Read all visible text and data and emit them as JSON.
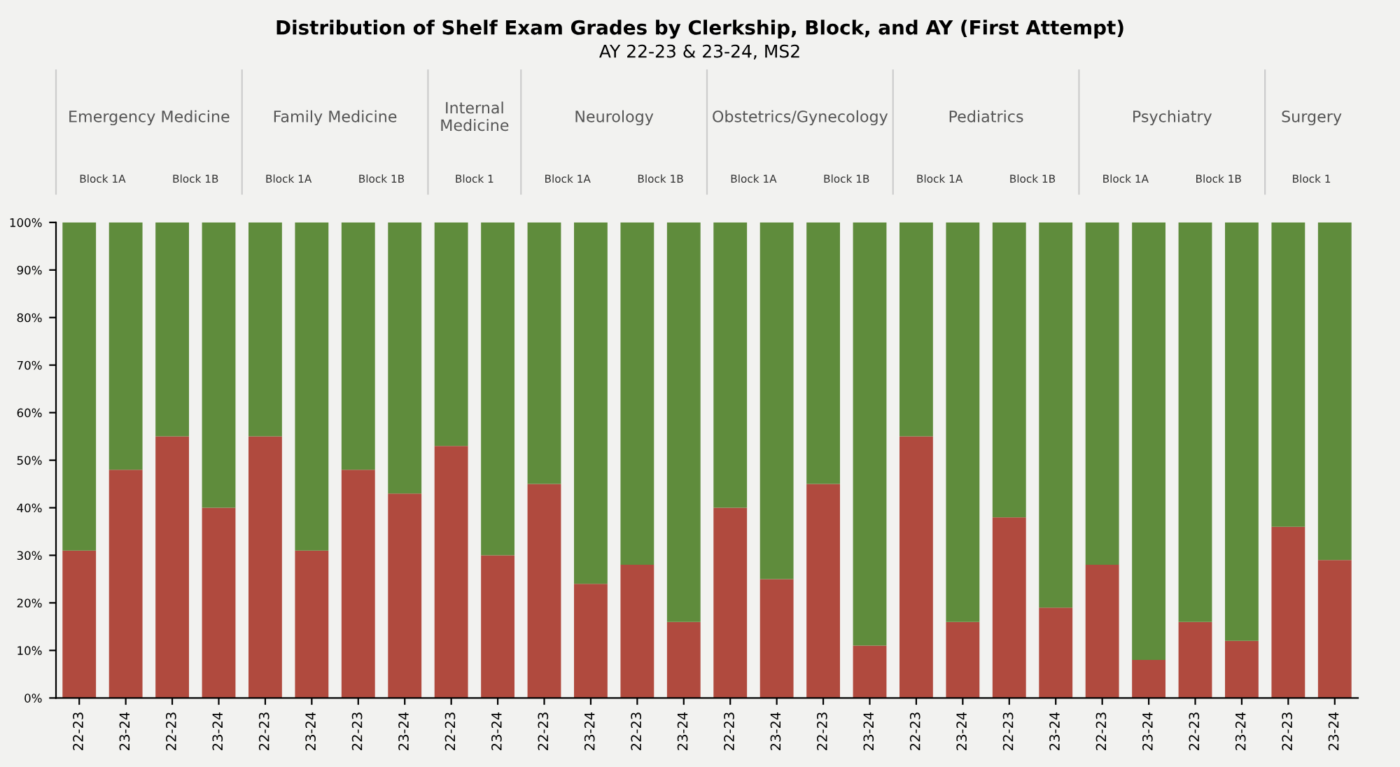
{
  "chart_data": {
    "type": "bar",
    "stacked": true,
    "title": "Distribution of Shelf Exam Grades by Clerkship, Block, and AY (First Attempt)",
    "subtitle": "AY 22-23 & 23-24, MS2",
    "annotations": [
      "Emergency Medicine",
      "Family Medicine",
      "Internal Medicine",
      "Neurology",
      "Obstetrics/Gynecology",
      "Pediatrics",
      "Psychiatry",
      "Surgery",
      "Block 1A",
      "Block 1B",
      "Block 1A",
      "Block 1B",
      "Block 1",
      "Block 1A",
      "Block 1B",
      "Block 1A",
      "Block 1B",
      "Block 1A",
      "Block 1B",
      "Block 1A",
      "Block 1B",
      "Block 1"
    ],
    "categories": [
      "22-23",
      "23-24",
      "22-23",
      "23-24",
      "22-23",
      "23-24",
      "22-23",
      "23-24",
      "22-23",
      "23-24",
      "22-23",
      "23-24",
      "22-23",
      "23-24",
      "22-23",
      "23-24",
      "22-23",
      "23-24",
      "22-23",
      "23-24",
      "22-23",
      "23-24",
      "22-23",
      "23-24",
      "22-23",
      "23-24",
      "22-23",
      "23-24"
    ],
    "series": [
      {
        "color": "#b04a3e",
        "values": [
          31,
          48,
          55,
          40,
          55,
          31,
          48,
          43,
          53,
          30,
          45,
          24,
          28,
          16,
          40,
          25,
          45,
          11,
          55,
          16,
          38,
          19,
          28,
          8,
          16,
          12,
          36,
          29
        ]
      },
      {
        "color": "#5f8c3c",
        "values": [
          69,
          52,
          45,
          60,
          45,
          69,
          52,
          57,
          47,
          70,
          55,
          76,
          72,
          84,
          60,
          75,
          55,
          89,
          45,
          84,
          62,
          81,
          72,
          92,
          84,
          88,
          64,
          71
        ]
      }
    ],
    "ylim": [
      0,
      100
    ],
    "yticks": [
      {
        "value": 0,
        "label": "0%"
      },
      {
        "value": 10,
        "label": "10%"
      },
      {
        "value": 20,
        "label": "20%"
      },
      {
        "value": 30,
        "label": "30%"
      },
      {
        "value": 40,
        "label": "40%"
      },
      {
        "value": 50,
        "label": "50%"
      },
      {
        "value": 60,
        "label": "60%"
      },
      {
        "value": 70,
        "label": "70%"
      },
      {
        "value": 80,
        "label": "80%"
      },
      {
        "value": 90,
        "label": "90%"
      },
      {
        "value": 100,
        "label": "100%"
      }
    ],
    "grid": false
  }
}
